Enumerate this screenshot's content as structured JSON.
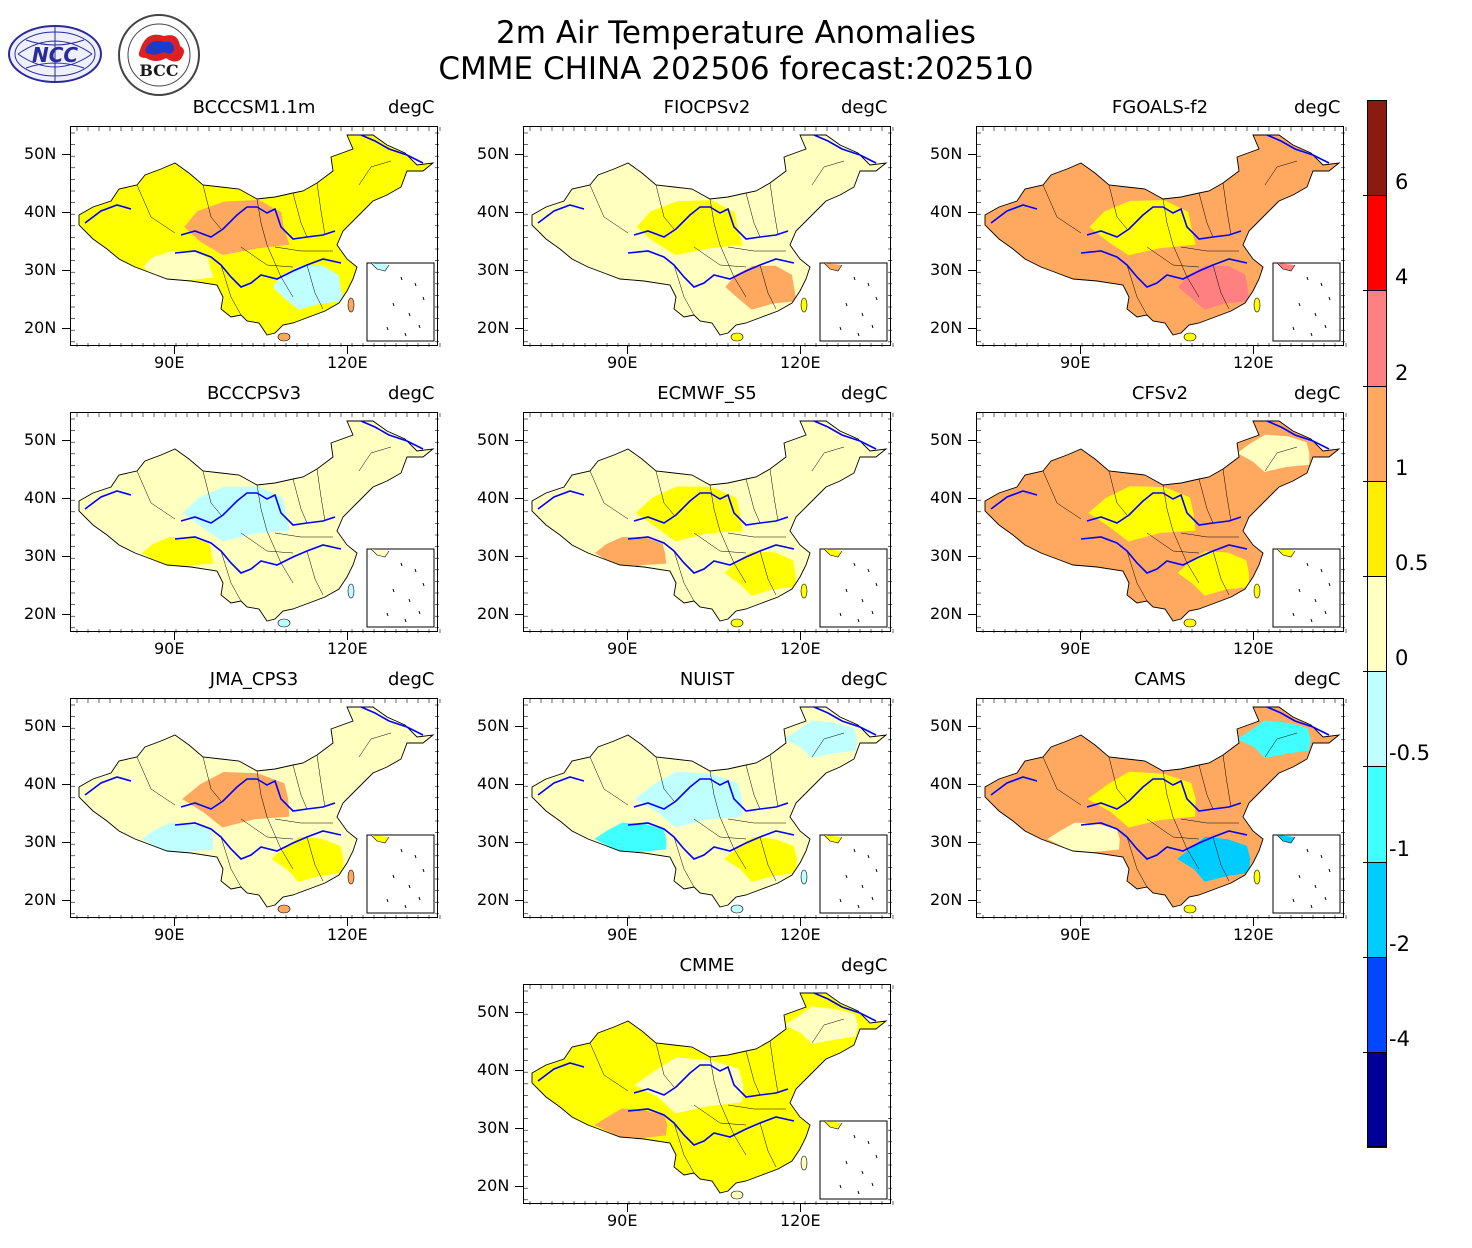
{
  "title": {
    "line1": "2m Air Temperature Anomalies",
    "line2": "CMME CHINA 202506 forecast:202510"
  },
  "logos": {
    "left": {
      "name": "NCC",
      "text": "NCC"
    },
    "right": {
      "name": "BCC",
      "text": "BCC",
      "ring_text": "BEIJING CLIMATE CENTER"
    }
  },
  "units": "degC",
  "axes": {
    "lat_ticks": [
      "50N",
      "40N",
      "30N",
      "20N"
    ],
    "lon_ticks": [
      "90E",
      "120E"
    ]
  },
  "panels": [
    {
      "model": "BCCCSM1.1m",
      "palette": [
        "#ffff00",
        "#ffa860",
        "#ffffc0",
        "#c0ffff",
        "#ffff00"
      ]
    },
    {
      "model": "FIOCPSv2",
      "palette": [
        "#ffffc0",
        "#ffff00",
        "#ffffc0",
        "#ffa860",
        "#ffffc0"
      ]
    },
    {
      "model": "FGOALS-f2",
      "palette": [
        "#ffa860",
        "#ffff00",
        "#ffa860",
        "#ff8080",
        "#ffa860"
      ]
    },
    {
      "model": "BCCCPSv3",
      "palette": [
        "#ffffc0",
        "#c0ffff",
        "#ffff00",
        "#ffffc0",
        "#ffffc0"
      ]
    },
    {
      "model": "ECMWF_S5",
      "palette": [
        "#ffffc0",
        "#ffff00",
        "#ffa860",
        "#ffff00",
        "#ffffc0"
      ]
    },
    {
      "model": "CFSv2",
      "palette": [
        "#ffa860",
        "#ffff00",
        "#ffa860",
        "#ffff00",
        "#ffffc0"
      ]
    },
    {
      "model": "JMA_CPS3",
      "palette": [
        "#ffffc0",
        "#ffa860",
        "#c0ffff",
        "#ffff00",
        "#ffffc0"
      ]
    },
    {
      "model": "NUIST",
      "palette": [
        "#ffffc0",
        "#c0ffff",
        "#40ffff",
        "#ffff00",
        "#c0ffff"
      ]
    },
    {
      "model": "CAMS",
      "palette": [
        "#ffa860",
        "#ffff00",
        "#ffffc0",
        "#00ccff",
        "#40ffff"
      ]
    },
    {
      "model": "CMME",
      "palette": [
        "#ffff00",
        "#ffffc0",
        "#ffa860",
        "#ffff00",
        "#ffffc0"
      ]
    }
  ],
  "colorbar": {
    "labels": [
      "6",
      "4",
      "2",
      "1",
      "0.5",
      "0",
      "-0.5",
      "-1",
      "-2",
      "-4"
    ],
    "colors": [
      "#8b1a10",
      "#ff0000",
      "#ff8080",
      "#ffa860",
      "#ffee00",
      "#ffffc0",
      "#c0ffff",
      "#40ffff",
      "#00ccff",
      "#0048ff",
      "#000099"
    ]
  },
  "colors": {
    "river": "#0000ff",
    "border": "#000000"
  }
}
